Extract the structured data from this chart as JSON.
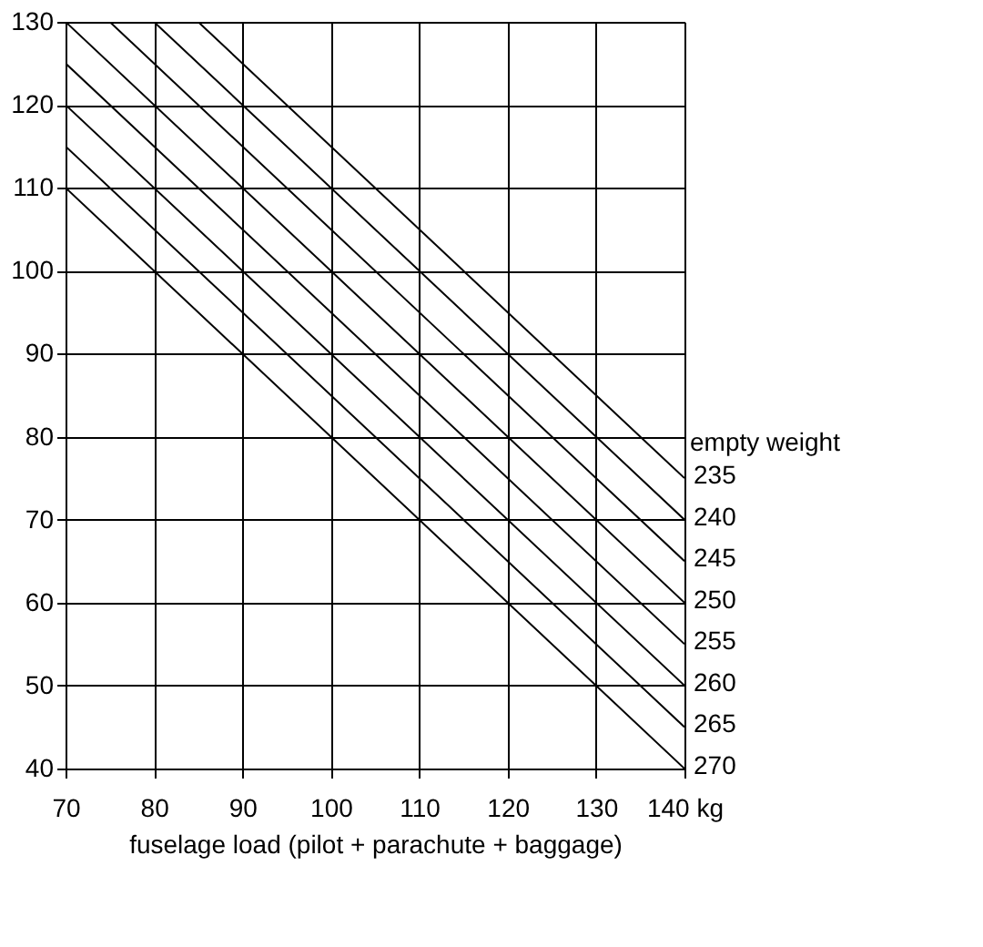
{
  "chart_data": {
    "type": "line",
    "xlabel": "fuselage load (pilot + parachute + baggage)",
    "xlim": [
      70,
      140
    ],
    "ylim": [
      40,
      130
    ],
    "xticks": [
      70,
      80,
      90,
      100,
      110,
      120,
      130,
      {
        "value": 140,
        "label": "140 kg"
      }
    ],
    "yticks": [
      40,
      50,
      60,
      70,
      80,
      90,
      100,
      110,
      120,
      130
    ],
    "grid": true,
    "legend": false,
    "marker": "none",
    "line_style": "solid",
    "annotations": [
      "empty weight"
    ],
    "series": [
      {
        "name": "235",
        "color": "#000000",
        "x": [
          85,
          140
        ],
        "values": [
          130,
          75
        ]
      },
      {
        "name": "240",
        "color": "#000000",
        "x": [
          80,
          140
        ],
        "values": [
          130,
          70
        ]
      },
      {
        "name": "245",
        "color": "#000000",
        "x": [
          75,
          140
        ],
        "values": [
          130,
          65
        ]
      },
      {
        "name": "250",
        "color": "#000000",
        "x": [
          70,
          140
        ],
        "values": [
          130,
          60
        ]
      },
      {
        "name": "255",
        "color": "#000000",
        "x": [
          70,
          140
        ],
        "values": [
          125,
          55
        ]
      },
      {
        "name": "260",
        "color": "#000000",
        "x": [
          70,
          140
        ],
        "values": [
          120,
          50
        ]
      },
      {
        "name": "265",
        "color": "#000000",
        "x": [
          70,
          140
        ],
        "values": [
          115,
          45
        ]
      },
      {
        "name": "270",
        "color": "#000000",
        "x": [
          70,
          140
        ],
        "values": [
          110,
          40
        ]
      }
    ]
  }
}
